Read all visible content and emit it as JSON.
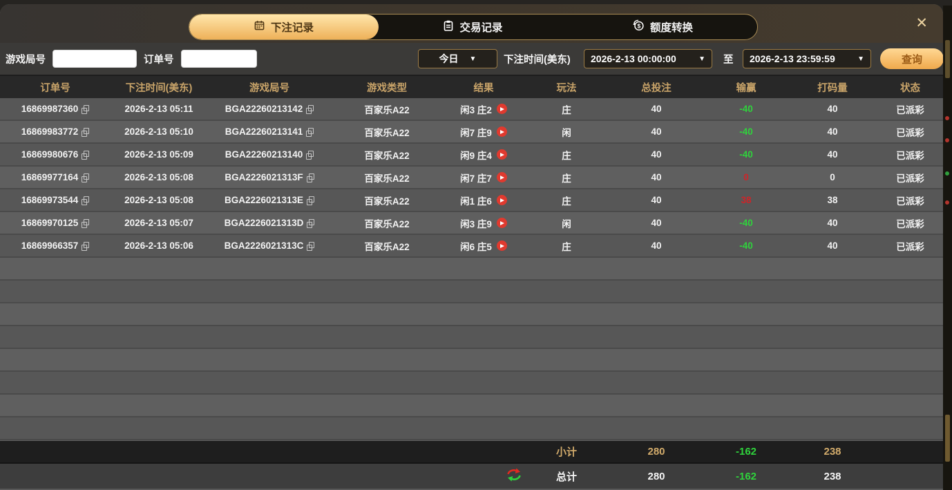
{
  "window": {
    "close_label": "✕"
  },
  "icons": {
    "dropdown_arrow": "▼"
  },
  "tabs": [
    {
      "label": "下注记录",
      "icon": "calendar-icon",
      "active": true
    },
    {
      "label": "交易记录",
      "icon": "clipboard-icon",
      "active": false
    },
    {
      "label": "额度转换",
      "icon": "coin-transfer-icon",
      "active": false
    }
  ],
  "filters": {
    "game_round_label": "游戏局号",
    "game_round_value": "",
    "order_no_label": "订单号",
    "order_no_value": "",
    "range_preset": "今日",
    "bet_time_label": "下注时间(美东)",
    "time_from": "2026-2-13 00:00:00",
    "to_label": "至",
    "time_to": "2026-2-13 23:59:59",
    "query_label": "查询"
  },
  "table": {
    "headers": [
      "订单号",
      "下注时间(美东)",
      "游戏局号",
      "游戏类型",
      "结果",
      "玩法",
      "总投注",
      "输赢",
      "打码量",
      "状态"
    ],
    "rows": [
      {
        "order_no": "16869987360",
        "bet_time": "2026-2-13 05:11",
        "round_no": "BGA22260213142",
        "game_type": "百家乐A22",
        "result": "闲3 庄2",
        "play": "庄",
        "total_bet": "40",
        "win_loss": "-40",
        "turnover": "40",
        "status": "已派彩"
      },
      {
        "order_no": "16869983772",
        "bet_time": "2026-2-13 05:10",
        "round_no": "BGA22260213141",
        "game_type": "百家乐A22",
        "result": "闲7 庄9",
        "play": "闲",
        "total_bet": "40",
        "win_loss": "-40",
        "turnover": "40",
        "status": "已派彩"
      },
      {
        "order_no": "16869980676",
        "bet_time": "2026-2-13 05:09",
        "round_no": "BGA22260213140",
        "game_type": "百家乐A22",
        "result": "闲9 庄4",
        "play": "庄",
        "total_bet": "40",
        "win_loss": "-40",
        "turnover": "40",
        "status": "已派彩"
      },
      {
        "order_no": "16869977164",
        "bet_time": "2026-2-13 05:08",
        "round_no": "BGA2226021313F",
        "game_type": "百家乐A22",
        "result": "闲7 庄7",
        "play": "庄",
        "total_bet": "40",
        "win_loss": "0",
        "turnover": "0",
        "status": "已派彩"
      },
      {
        "order_no": "16869973544",
        "bet_time": "2026-2-13 05:08",
        "round_no": "BGA2226021313E",
        "game_type": "百家乐A22",
        "result": "闲1 庄6",
        "play": "庄",
        "total_bet": "40",
        "win_loss": "38",
        "turnover": "38",
        "status": "已派彩"
      },
      {
        "order_no": "16869970125",
        "bet_time": "2026-2-13 05:07",
        "round_no": "BGA2226021313D",
        "game_type": "百家乐A22",
        "result": "闲3 庄9",
        "play": "闲",
        "total_bet": "40",
        "win_loss": "-40",
        "turnover": "40",
        "status": "已派彩"
      },
      {
        "order_no": "16869966357",
        "bet_time": "2026-2-13 05:06",
        "round_no": "BGA2226021313C",
        "game_type": "百家乐A22",
        "result": "闲6 庄5",
        "play": "庄",
        "total_bet": "40",
        "win_loss": "-40",
        "turnover": "40",
        "status": "已派彩"
      }
    ],
    "subtotal": {
      "label": "小计",
      "total_bet": "280",
      "win_loss": "-162",
      "turnover": "238"
    },
    "total": {
      "label": "总计",
      "total_bet": "280",
      "win_loss": "-162",
      "turnover": "238"
    }
  },
  "colors": {
    "accent_gold": "#eeb159",
    "win_green": "#2fd33c",
    "loss_red": "#cf2428",
    "header_gold_text": "#c9a469"
  }
}
